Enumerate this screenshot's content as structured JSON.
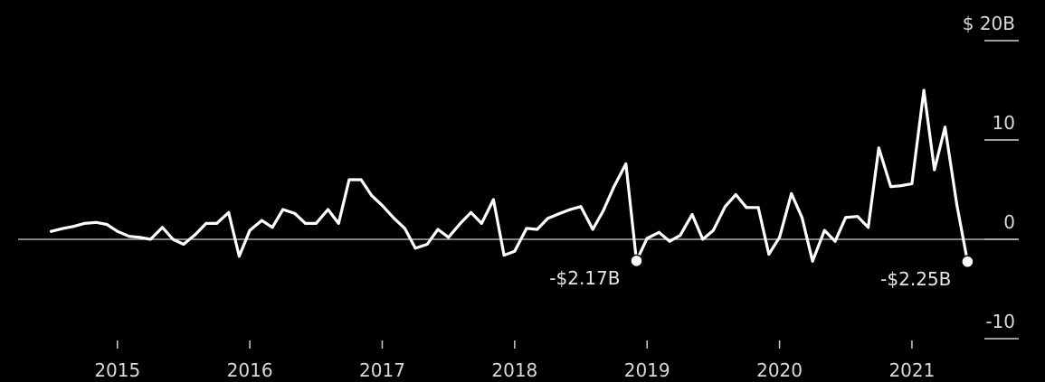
{
  "chart_data": {
    "type": "line",
    "title": "",
    "xlabel": "",
    "ylabel": "",
    "ylim": [
      -10,
      20
    ],
    "y_ticks": [
      {
        "value": 20,
        "label": "$ 20B"
      },
      {
        "value": 10,
        "label": "10"
      },
      {
        "value": 0,
        "label": "0"
      },
      {
        "value": -10,
        "label": "-10"
      }
    ],
    "x_ticks": [
      {
        "value": 2015,
        "label": "2015"
      },
      {
        "value": 2016,
        "label": "2016"
      },
      {
        "value": 2017,
        "label": "2017"
      },
      {
        "value": 2018,
        "label": "2018"
      },
      {
        "value": 2019,
        "label": "2019"
      },
      {
        "value": 2020,
        "label": "2020"
      },
      {
        "value": 2021,
        "label": "2021"
      }
    ],
    "xlim": [
      2014.25,
      2021.8
    ],
    "zero_line": true,
    "grid": false,
    "series": [
      {
        "color": "#ffffff",
        "points": [
          [
            2014.5,
            0.8
          ],
          [
            2014.59,
            1.1
          ],
          [
            2014.67,
            1.3
          ],
          [
            2014.75,
            1.6
          ],
          [
            2014.84,
            1.7
          ],
          [
            2014.92,
            1.5
          ],
          [
            2015.0,
            0.8
          ],
          [
            2015.09,
            0.3
          ],
          [
            2015.17,
            0.2
          ],
          [
            2015.25,
            0.0
          ],
          [
            2015.34,
            1.2
          ],
          [
            2015.42,
            0.0
          ],
          [
            2015.5,
            -0.5
          ],
          [
            2015.59,
            0.5
          ],
          [
            2015.67,
            1.6
          ],
          [
            2015.75,
            1.6
          ],
          [
            2015.84,
            2.7
          ],
          [
            2015.92,
            -1.7
          ],
          [
            2016.0,
            0.9
          ],
          [
            2016.09,
            1.9
          ],
          [
            2016.17,
            1.2
          ],
          [
            2016.25,
            3.0
          ],
          [
            2016.34,
            2.6
          ],
          [
            2016.42,
            1.6
          ],
          [
            2016.5,
            1.6
          ],
          [
            2016.59,
            3.0
          ],
          [
            2016.67,
            1.6
          ],
          [
            2016.75,
            6.0
          ],
          [
            2016.84,
            6.0
          ],
          [
            2016.92,
            4.4
          ],
          [
            2017.0,
            3.4
          ],
          [
            2017.09,
            2.1
          ],
          [
            2017.17,
            1.1
          ],
          [
            2017.25,
            -0.9
          ],
          [
            2017.34,
            -0.5
          ],
          [
            2017.42,
            1.0
          ],
          [
            2017.5,
            0.2
          ],
          [
            2017.59,
            1.6
          ],
          [
            2017.67,
            2.7
          ],
          [
            2017.75,
            1.6
          ],
          [
            2017.84,
            4.0
          ],
          [
            2017.92,
            -1.6
          ],
          [
            2018.0,
            -1.2
          ],
          [
            2018.09,
            1.1
          ],
          [
            2018.17,
            1.0
          ],
          [
            2018.25,
            2.1
          ],
          [
            2018.34,
            2.6
          ],
          [
            2018.42,
            3.0
          ],
          [
            2018.5,
            3.3
          ],
          [
            2018.59,
            1.0
          ],
          [
            2018.67,
            2.9
          ],
          [
            2018.75,
            5.3
          ],
          [
            2018.84,
            7.6
          ],
          [
            2018.92,
            -2.17
          ],
          [
            2019.0,
            0.1
          ],
          [
            2019.09,
            0.7
          ],
          [
            2019.17,
            -0.2
          ],
          [
            2019.25,
            0.4
          ],
          [
            2019.34,
            2.5
          ],
          [
            2019.42,
            0.0
          ],
          [
            2019.5,
            0.9
          ],
          [
            2019.59,
            3.3
          ],
          [
            2019.67,
            4.5
          ],
          [
            2019.75,
            3.2
          ],
          [
            2019.84,
            3.2
          ],
          [
            2019.92,
            -1.5
          ],
          [
            2020.0,
            0.2
          ],
          [
            2020.09,
            4.6
          ],
          [
            2020.17,
            2.2
          ],
          [
            2020.25,
            -2.2
          ],
          [
            2020.34,
            0.9
          ],
          [
            2020.42,
            -0.2
          ],
          [
            2020.5,
            2.2
          ],
          [
            2020.59,
            2.3
          ],
          [
            2020.67,
            1.2
          ],
          [
            2020.75,
            9.2
          ],
          [
            2020.84,
            5.3
          ],
          [
            2020.92,
            5.4
          ],
          [
            2021.0,
            5.6
          ],
          [
            2021.09,
            15.0
          ],
          [
            2021.17,
            7.0
          ],
          [
            2021.25,
            11.3
          ],
          [
            2021.34,
            3.4
          ],
          [
            2021.42,
            -2.25
          ]
        ]
      }
    ],
    "markers": [
      {
        "x": 2018.92,
        "y": -2.17,
        "label": "-$2.17B",
        "label_side": "left"
      },
      {
        "x": 2021.42,
        "y": -2.25,
        "label": "-$2.25B",
        "label_side": "left"
      }
    ]
  }
}
